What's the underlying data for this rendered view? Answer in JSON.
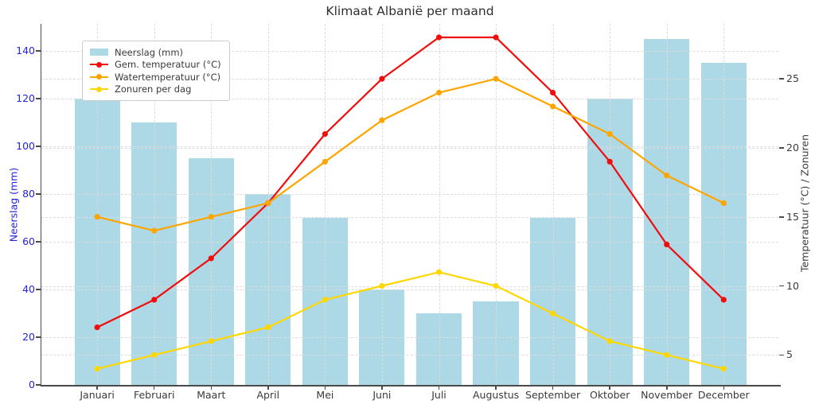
{
  "chart_data": {
    "type": "bar+line",
    "title": "Klimaat Albanië per maand",
    "categories": [
      "Januari",
      "Februari",
      "Maart",
      "April",
      "Mei",
      "Juni",
      "Juli",
      "Augustus",
      "September",
      "Oktober",
      "November",
      "December"
    ],
    "bar_series": {
      "name": "Neerslag (mm)",
      "axis": "left",
      "color": "#ADD8E6",
      "values": [
        120,
        110,
        95,
        80,
        70,
        40,
        30,
        35,
        70,
        120,
        145,
        135
      ]
    },
    "line_series": [
      {
        "name": "Gem. temperatuur (°C)",
        "axis": "right",
        "color": "#F20D0D",
        "values": [
          7,
          9,
          12,
          16,
          21,
          25,
          28,
          28,
          24,
          19,
          13,
          9
        ]
      },
      {
        "name": "Watertemperatuur (°C)",
        "axis": "right",
        "color": "#FFA500",
        "values": [
          15,
          14,
          15,
          16,
          19,
          22,
          24,
          25,
          23,
          21,
          18,
          16
        ]
      },
      {
        "name": "Zonuren per dag",
        "axis": "right",
        "color": "#FFD700",
        "values": [
          4,
          5,
          6,
          7,
          9,
          10,
          11,
          10,
          8,
          6,
          5,
          4
        ]
      }
    ],
    "xlabel": "",
    "ylabel_left": "Neerslag (mm)",
    "ylabel_right": "Temperatuur (°C) / Zonuren",
    "yticks_left": [
      0,
      20,
      40,
      60,
      80,
      100,
      120,
      140
    ],
    "yticks_right": [
      5,
      10,
      15,
      20,
      25
    ],
    "ylim_left": [
      0,
      151.33
    ],
    "ylim_right": [
      2.83,
      28.98
    ],
    "xlim": [
      -0.98,
      11.96
    ],
    "bar_width_units": 0.8,
    "grid": "both-dashed",
    "legend_position": "upper-left",
    "colors": {
      "bar": "#ADD8E6",
      "avg_temp": "#F20D0D",
      "water_temp": "#FFA500",
      "sun_hours": "#FFD700",
      "left_axis_text": "#2222E0",
      "right_axis_text": "#3a3a3a",
      "grid": "#dcdcdc",
      "spine": "#4a4a4a"
    }
  }
}
